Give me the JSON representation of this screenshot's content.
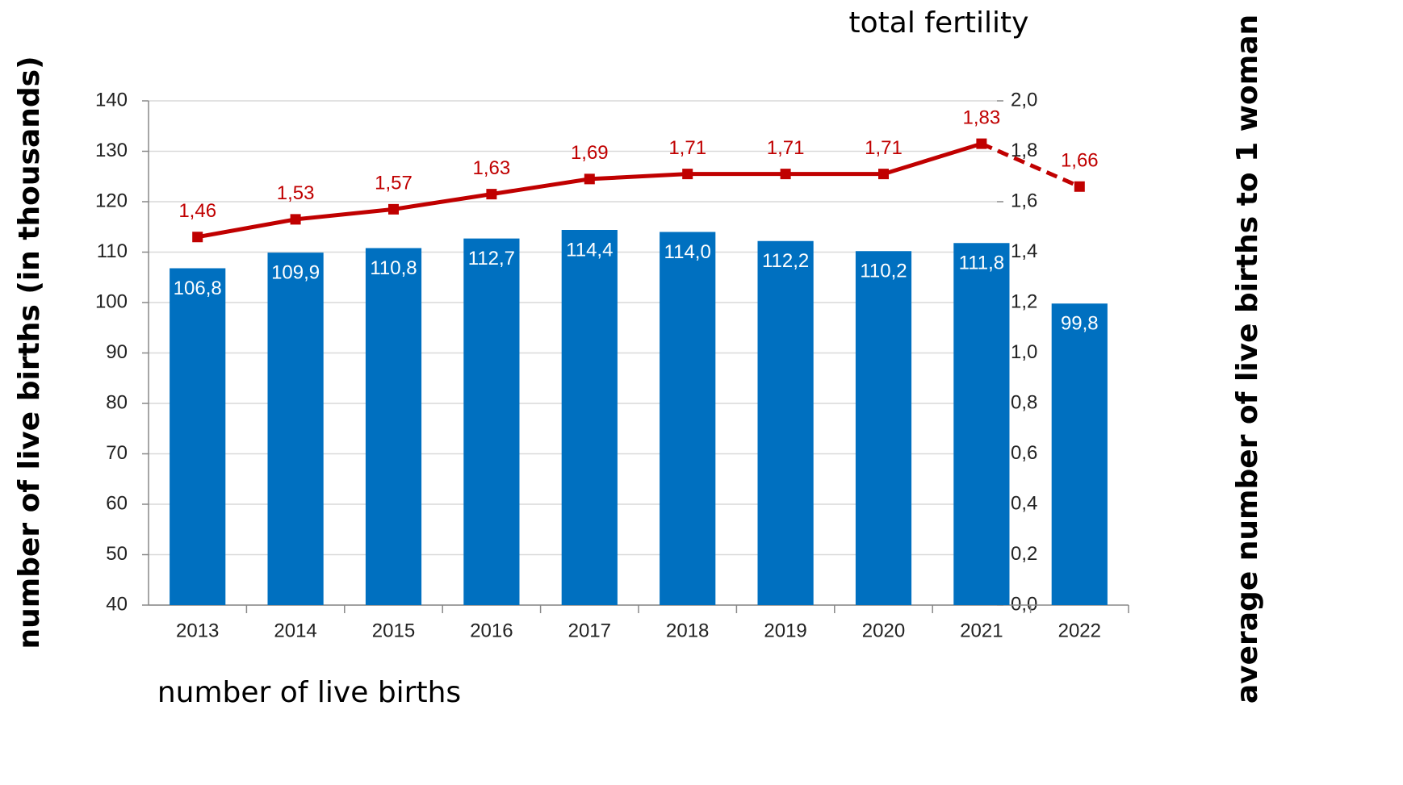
{
  "chart_data": {
    "type": "bar-line",
    "title_top": "total fertility",
    "title_bottom": "number of live births",
    "y_label": "number of live births (in thousands)",
    "y2_label": "average number of live births to 1 woman",
    "categories": [
      "2013",
      "2014",
      "2015",
      "2016",
      "2017",
      "2018",
      "2019",
      "2020",
      "2021",
      "2022"
    ],
    "series": [
      {
        "type": "bar",
        "color": "#0070c0",
        "values": [
          106.8,
          109.9,
          110.8,
          112.7,
          114.4,
          114.0,
          112.2,
          110.2,
          111.8,
          99.8
        ],
        "value_labels": [
          "106,8",
          "109,9",
          "110,8",
          "112,7",
          "114,4",
          "114,0",
          "112,2",
          "110,2",
          "111,8",
          "99,8"
        ]
      },
      {
        "type": "line",
        "axis": "y2",
        "color": "#c00000",
        "dashed_last_segment": true,
        "values": [
          1.46,
          1.53,
          1.57,
          1.63,
          1.69,
          1.71,
          1.71,
          1.71,
          1.83,
          1.66
        ],
        "value_labels": [
          "1,46",
          "1,53",
          "1,57",
          "1,63",
          "1,69",
          "1,71",
          "1,71",
          "1,71",
          "1,83",
          "1,66"
        ]
      }
    ],
    "ylim": [
      40,
      140
    ],
    "yticks": [
      40,
      50,
      60,
      70,
      80,
      90,
      100,
      110,
      120,
      130,
      140
    ],
    "y2lim": [
      0,
      2
    ],
    "y2ticks": [
      {
        "value": 0,
        "label": "0,0"
      },
      {
        "value": 0.2,
        "label": "0,2"
      },
      {
        "value": 0.4,
        "label": "0,4"
      },
      {
        "value": 0.6,
        "label": "0,6"
      },
      {
        "value": 0.8,
        "label": "0,8"
      },
      {
        "value": 1.0,
        "label": "1,0"
      },
      {
        "value": 1.2,
        "label": "1,2"
      },
      {
        "value": 1.4,
        "label": "1,4"
      },
      {
        "value": 1.6,
        "label": "1,6"
      },
      {
        "value": 1.8,
        "label": "1,8"
      },
      {
        "value": 2.0,
        "label": "2,0"
      }
    ],
    "grid": true
  }
}
